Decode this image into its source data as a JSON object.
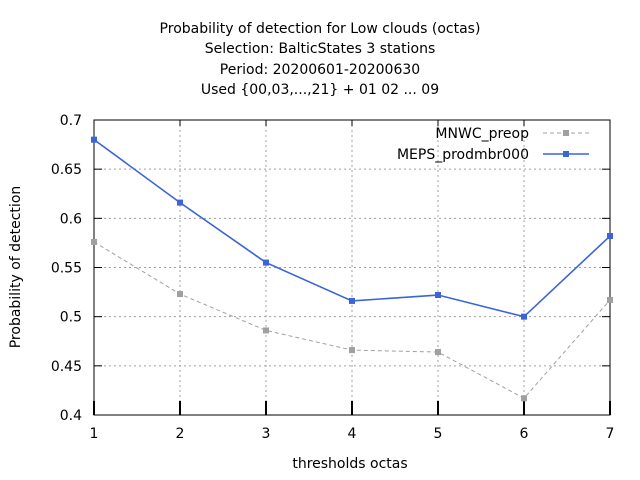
{
  "chart_data": {
    "type": "line",
    "title_lines": [
      "Probability of detection  for Low clouds (octas)",
      "Selection: BalticStates      3 stations",
      "Period: 20200601-20200630",
      "Used {00,03,...,21} + 01 02 ... 09"
    ],
    "xlabel": "thresholds octas",
    "ylabel": "Probability of detection",
    "x": [
      1,
      2,
      3,
      4,
      5,
      6,
      7
    ],
    "xlim": [
      1,
      7
    ],
    "ylim": [
      0.4,
      0.7
    ],
    "xticks": [
      "1",
      "2",
      "3",
      "4",
      "5",
      "6",
      "7"
    ],
    "yticks": [
      "0.4",
      "0.45",
      "0.5",
      "0.55",
      "0.6",
      "0.65",
      "0.7"
    ],
    "grid": true,
    "legend_position": "top-right",
    "series": [
      {
        "name": "MNWC_preop",
        "values": [
          0.576,
          0.523,
          0.486,
          0.466,
          0.464,
          0.417,
          0.517
        ],
        "color": "#a0a0a0",
        "dashed": true
      },
      {
        "name": "MEPS_prodmbr000",
        "values": [
          0.68,
          0.616,
          0.555,
          0.516,
          0.522,
          0.5,
          0.582
        ],
        "color": "#3a64d8",
        "dashed": false
      }
    ]
  }
}
